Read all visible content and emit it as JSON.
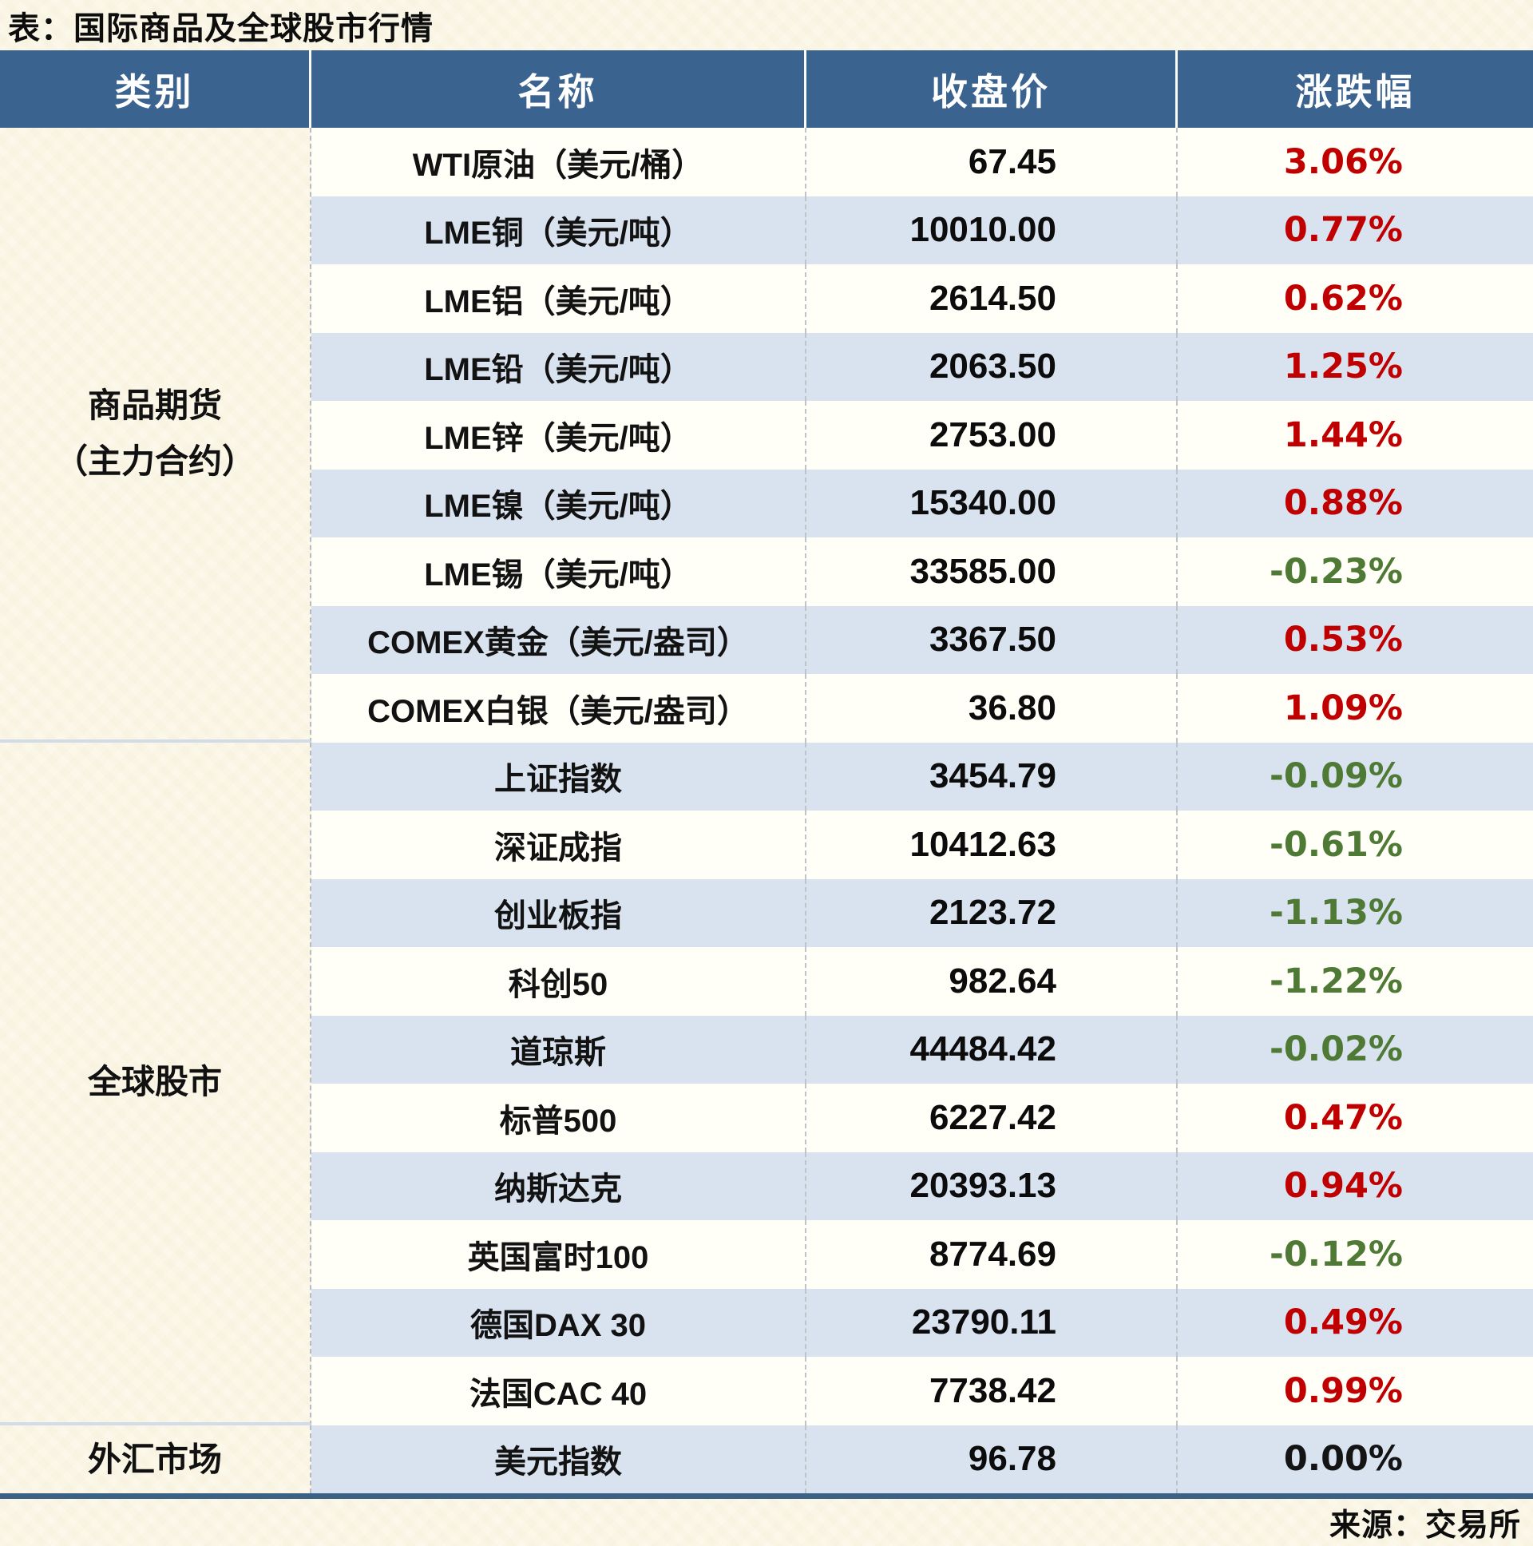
{
  "page": {
    "title": "表：国际商品及全球股市行情",
    "source": "来源：交易所"
  },
  "colors": {
    "header_bg": "#3a6390",
    "row_bg": "#fffef7",
    "stripe_bg": "#d9e2ef",
    "up": "#c00000",
    "down": "#4f7a35",
    "flat": "#141414",
    "bottom_line": "#3a6186"
  },
  "table": {
    "headers": [
      "类别",
      "名称",
      "收盘价",
      "涨跌幅"
    ],
    "sections": [
      {
        "category_lines": [
          "商品期货",
          "（主力合约）"
        ],
        "rows": [
          {
            "name": "WTI原油（美元/桶）",
            "close": "67.45",
            "change": "3.06%",
            "direction": "up"
          },
          {
            "name": "LME铜（美元/吨）",
            "close": "10010.00",
            "change": "0.77%",
            "direction": "up"
          },
          {
            "name": "LME铝（美元/吨）",
            "close": "2614.50",
            "change": "0.62%",
            "direction": "up"
          },
          {
            "name": "LME铅（美元/吨）",
            "close": "2063.50",
            "change": "1.25%",
            "direction": "up"
          },
          {
            "name": "LME锌（美元/吨）",
            "close": "2753.00",
            "change": "1.44%",
            "direction": "up"
          },
          {
            "name": "LME镍（美元/吨）",
            "close": "15340.00",
            "change": "0.88%",
            "direction": "up"
          },
          {
            "name": "LME锡（美元/吨）",
            "close": "33585.00",
            "change": "-0.23%",
            "direction": "down"
          },
          {
            "name": "COMEX黄金（美元/盎司）",
            "close": "3367.50",
            "change": "0.53%",
            "direction": "up"
          },
          {
            "name": "COMEX白银（美元/盎司）",
            "close": "36.80",
            "change": "1.09%",
            "direction": "up"
          }
        ]
      },
      {
        "category_lines": [
          "全球股市"
        ],
        "rows": [
          {
            "name": "上证指数",
            "close": "3454.79",
            "change": "-0.09%",
            "direction": "down"
          },
          {
            "name": "深证成指",
            "close": "10412.63",
            "change": "-0.61%",
            "direction": "down"
          },
          {
            "name": "创业板指",
            "close": "2123.72",
            "change": "-1.13%",
            "direction": "down"
          },
          {
            "name": "科创50",
            "close": "982.64",
            "change": "-1.22%",
            "direction": "down"
          },
          {
            "name": "道琼斯",
            "close": "44484.42",
            "change": "-0.02%",
            "direction": "down"
          },
          {
            "name": "标普500",
            "close": "6227.42",
            "change": "0.47%",
            "direction": "up"
          },
          {
            "name": "纳斯达克",
            "close": "20393.13",
            "change": "0.94%",
            "direction": "up"
          },
          {
            "name": "英国富时100",
            "close": "8774.69",
            "change": "-0.12%",
            "direction": "down"
          },
          {
            "name": "德国DAX 30",
            "close": "23790.11",
            "change": "0.49%",
            "direction": "up"
          },
          {
            "name": "法国CAC 40",
            "close": "7738.42",
            "change": "0.99%",
            "direction": "up"
          }
        ]
      },
      {
        "category_lines": [
          "外汇市场"
        ],
        "rows": [
          {
            "name": "美元指数",
            "close": "96.78",
            "change": "0.00%",
            "direction": "flat"
          }
        ]
      }
    ]
  }
}
